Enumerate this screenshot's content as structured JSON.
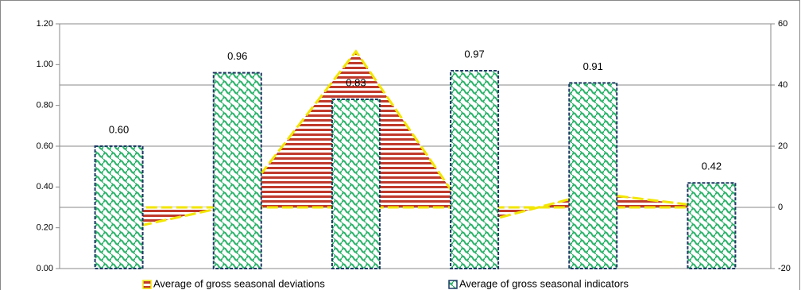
{
  "chart_data": {
    "type": "bar",
    "categories": [
      null,
      null,
      null,
      null,
      null,
      null
    ],
    "series": [
      {
        "name": "Average of gross seasonal deviations",
        "type": "area",
        "axis": "y2",
        "color": "#c0392b",
        "edge_color": "#f2e600",
        "values": [
          -7.5,
          1,
          51,
          -5.5,
          4.7,
          0
        ]
      },
      {
        "name": "Average of gross seasonal indicators",
        "type": "bar",
        "color": "#2db36b",
        "edge_color": "#1f3864",
        "values": [
          0.6,
          0.96,
          0.83,
          0.97,
          0.91,
          0.42
        ],
        "value_labels": [
          "0.60",
          "0.96",
          "0.83",
          "0.97",
          "0.91",
          "0.42"
        ]
      }
    ],
    "ylim": [
      0,
      1.2
    ],
    "yticks": [
      {
        "value": 0,
        "label": "0.00"
      },
      {
        "value": 0.2,
        "label": "0.20"
      },
      {
        "value": 0.4,
        "label": "0.40"
      },
      {
        "value": 0.6,
        "label": "0.60"
      },
      {
        "value": 0.8,
        "label": "0.80"
      },
      {
        "value": 1,
        "label": "1.00"
      },
      {
        "value": 1.2,
        "label": "1.20"
      }
    ],
    "y2lim": [
      -20,
      60
    ],
    "y2ticks": [
      -20,
      0,
      20,
      40,
      60
    ],
    "grid": true,
    "legend": "bottom"
  }
}
